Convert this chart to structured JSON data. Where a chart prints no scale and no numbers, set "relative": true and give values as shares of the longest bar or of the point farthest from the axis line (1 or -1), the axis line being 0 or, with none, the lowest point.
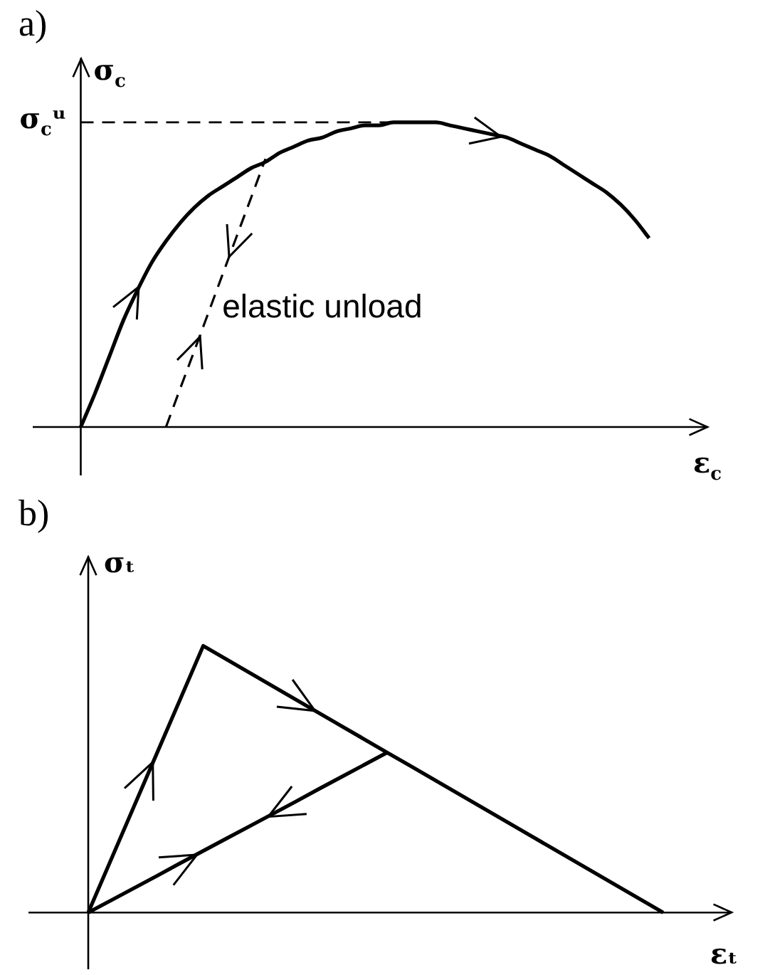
{
  "chart_data": [
    {
      "type": "line",
      "title": "a)",
      "xlabel": "ε$_{c}$",
      "ylabel": "σ$_{c}$",
      "relative": true,
      "marker": "none",
      "line_style": "solid",
      "categories": [
        null,
        null,
        null,
        null,
        null,
        null,
        null,
        null,
        null,
        null,
        null,
        null,
        null,
        null,
        null,
        null,
        null,
        null,
        null,
        null,
        null,
        null,
        null,
        null,
        null,
        null,
        null,
        null,
        null,
        null,
        null,
        null,
        null,
        null,
        null,
        null,
        null,
        null,
        null,
        null,
        null
      ],
      "series": [
        {
          "color": "#000000",
          "values": [
            0,
            0.11,
            0.23,
            0.35,
            0.45,
            0.54,
            0.61,
            0.67,
            0.72,
            0.76,
            0.79,
            0.82,
            0.85,
            0.87,
            0.9,
            0.92,
            0.94,
            0.95,
            0.97,
            0.98,
            0.99,
            0.99,
            1.0,
            1.0,
            1.0,
            1.0,
            0.99,
            0.98,
            0.97,
            0.96,
            0.95,
            0.93,
            0.91,
            0.89,
            0.86,
            0.83,
            0.8,
            0.77,
            0.73,
            0.68,
            0.62
          ]
        },
        {
          "color": "#000000",
          "line_style": "dashed",
          "values": [
            null,
            null,
            null,
            null,
            null,
            null,
            0,
            0.126,
            0.251,
            0.377,
            0.503,
            0.629,
            0.754,
            0.88,
            null,
            null,
            null,
            null,
            null,
            null,
            null,
            null,
            null,
            null,
            null,
            null,
            null,
            null,
            null,
            null,
            null,
            null,
            null,
            null,
            null,
            null,
            null,
            null,
            null,
            null,
            null
          ]
        }
      ],
      "ref_lines": [
        {
          "axis": "y",
          "value": 1,
          "label": "σ$_{c}$ᵘ",
          "line_style": "dashed",
          "color": "#000000"
        }
      ],
      "annotations": [
        "elastic unload"
      ]
    },
    {
      "type": "line",
      "title": "b)",
      "xlabel": "εₜ",
      "ylabel": "σₜ",
      "relative": true,
      "marker": "none",
      "line_style": "solid",
      "categories": [
        null,
        null,
        null,
        null,
        null,
        null,
        null,
        null,
        null,
        null,
        null,
        null,
        null,
        null,
        null,
        null,
        null,
        null,
        null,
        null,
        null,
        null,
        null,
        null,
        null,
        null
      ],
      "series": [
        {
          "color": "#000000",
          "values": [
            0,
            0.2,
            0.4,
            0.6,
            0.8,
            1.0,
            0.95,
            0.9,
            0.85,
            0.8,
            0.75,
            0.7,
            0.65,
            0.6,
            0.55,
            0.5,
            0.45,
            0.4,
            0.35,
            0.3,
            0.25,
            0.2,
            0.15,
            0.1,
            0.05,
            0
          ]
        },
        {
          "color": "#000000",
          "values": [
            0,
            0.046,
            0.092,
            0.138,
            0.185,
            0.231,
            0.277,
            0.323,
            0.369,
            0.415,
            0.462,
            0.508,
            0.554,
            0.6,
            null,
            null,
            null,
            null,
            null,
            null,
            null,
            null,
            null,
            null,
            null,
            null
          ]
        }
      ]
    }
  ]
}
